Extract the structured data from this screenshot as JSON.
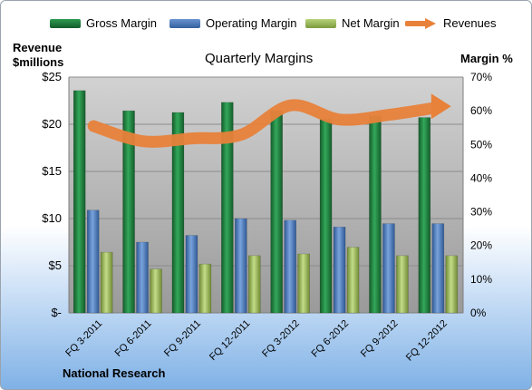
{
  "chart_data": {
    "type": "bar",
    "title": "Quarterly Margins",
    "categories": [
      "FQ 3-2011",
      "FQ 6-2011",
      "FQ 9-2011",
      "FQ 12-2011",
      "FQ 3-2012",
      "FQ 6-2012",
      "FQ 9-2012",
      "FQ 12-2012"
    ],
    "series": [
      {
        "name": "Gross Margin",
        "axis": "right",
        "values": [
          66,
          60,
          59.5,
          62.5,
          60,
          57.5,
          58.5,
          58
        ],
        "color": "#1e7a3c"
      },
      {
        "name": "Operating Margin",
        "axis": "right",
        "values": [
          30.5,
          21,
          23,
          28,
          27.5,
          25.5,
          26.5,
          26.5
        ],
        "color": "#4b78b8"
      },
      {
        "name": "Net Margin",
        "axis": "right",
        "values": [
          18,
          13,
          14.5,
          17,
          17.5,
          19.5,
          17,
          17
        ],
        "color": "#9bbb59"
      },
      {
        "name": "Revenues",
        "axis": "left",
        "type": "line",
        "values": [
          19.8,
          18.2,
          18.5,
          18.9,
          22.0,
          20.5,
          21.0,
          21.8
        ],
        "color": "#e8813a"
      }
    ],
    "y_left": {
      "label_line1": "Revenue",
      "label_line2": "$millions",
      "range": [
        0,
        25
      ],
      "ticks": [
        "$-",
        "$5",
        "$10",
        "$15",
        "$20",
        "$25"
      ]
    },
    "y_right": {
      "label": "Margin %",
      "range": [
        0,
        70
      ],
      "ticks": [
        "0%",
        "10%",
        "20%",
        "30%",
        "40%",
        "50%",
        "60%",
        "70%"
      ]
    },
    "legend_position": "top",
    "grid": true
  },
  "footer": {
    "source": "National Research"
  }
}
